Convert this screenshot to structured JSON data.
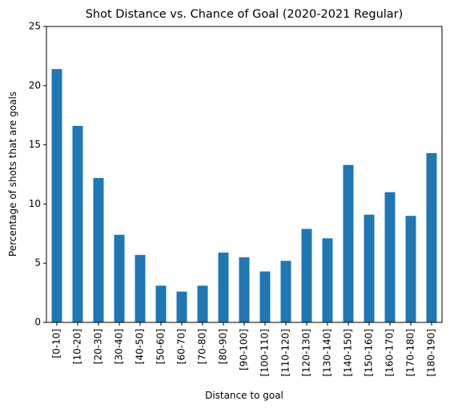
{
  "chart_data": {
    "type": "bar",
    "title": "Shot Distance vs. Chance of Goal (2020-2021 Regular)",
    "xlabel": "Distance to goal",
    "ylabel": "Percentage of shots that are goals",
    "ylim": [
      0,
      25
    ],
    "yticks": [
      0,
      5,
      10,
      15,
      20,
      25
    ],
    "grid": false,
    "bar_color": "#1f77b4",
    "categories": [
      "[0-10]",
      "[10-20]",
      "[20-30]",
      "[30-40]",
      "[40-50]",
      "[50-60]",
      "[60-70]",
      "[70-80]",
      "[80-90]",
      "[90-100]",
      "[100-110]",
      "[110-120]",
      "[120-130]",
      "[130-140]",
      "[140-150]",
      "[150-160]",
      "[160-170]",
      "[170-180]",
      "[180-190]"
    ],
    "values": [
      21.4,
      16.6,
      12.2,
      7.4,
      5.7,
      3.1,
      2.6,
      3.1,
      5.9,
      5.5,
      4.3,
      5.2,
      7.9,
      7.1,
      13.3,
      9.1,
      11.0,
      9.0,
      14.3
    ]
  }
}
